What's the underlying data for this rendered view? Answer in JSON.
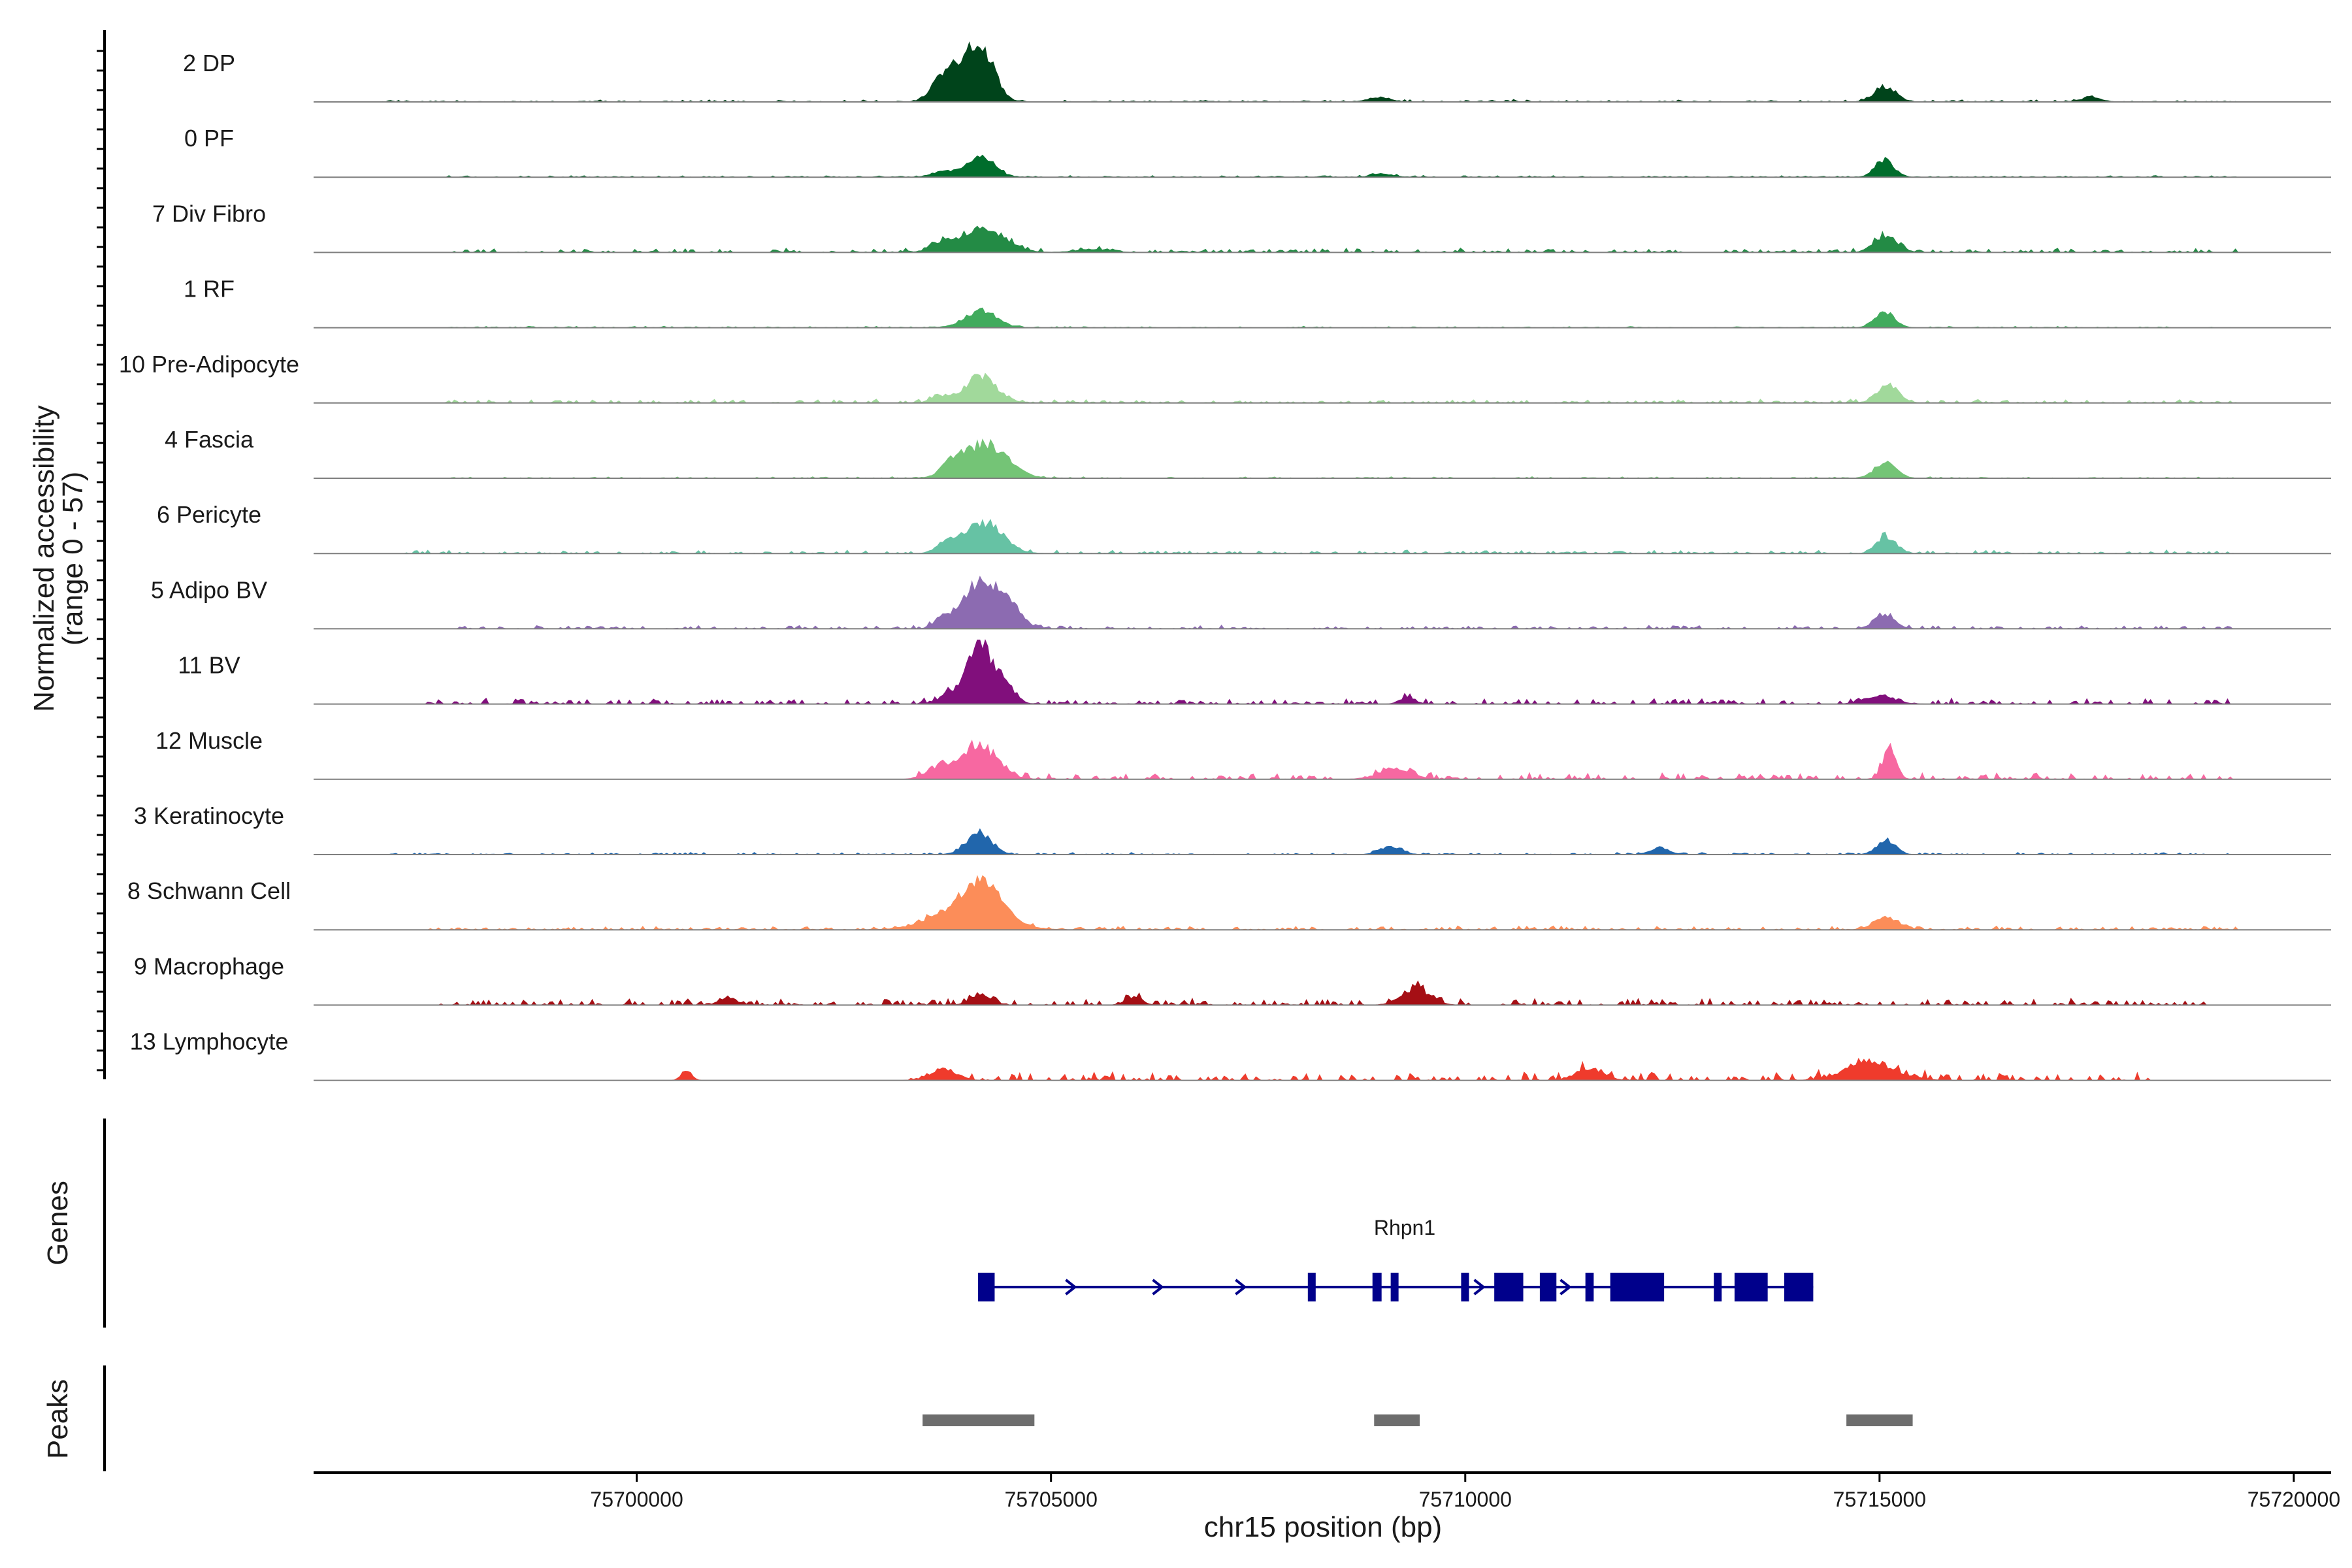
{
  "chart_data": {
    "type": "area",
    "title": "",
    "chromosome": "chr15",
    "xlabel": "chr15 position (bp)",
    "xlim": [
      75696100,
      75720450
    ],
    "x_ticks": [
      75700000,
      75705000,
      75710000,
      75715000,
      75720000
    ],
    "x_tick_labels": [
      "75700000",
      "75705000",
      "75710000",
      "75715000",
      "75720000"
    ],
    "ylabel_line1": "Normalized accessibility",
    "ylabel_line2": "(range 0 - 57)",
    "ylim": [
      0,
      57
    ],
    "panels": {
      "genes": "Genes",
      "peaks": "Peaks"
    },
    "series": [
      {
        "name": "2 DP",
        "color": "#00441B",
        "peaks": [
          [
            75703900,
            30,
            180
          ],
          [
            75704180,
            40,
            150
          ],
          [
            75703650,
            12,
            120
          ],
          [
            75708960,
            4,
            130
          ],
          [
            75715070,
            14,
            130
          ],
          [
            75717550,
            4,
            120
          ]
        ],
        "noise": [
          [
            75696900,
            75719300,
            1.4
          ]
        ]
      },
      {
        "name": "0 PF",
        "color": "#006D2C",
        "peaks": [
          [
            75704150,
            17,
            170
          ],
          [
            75703700,
            5,
            140
          ],
          [
            75709000,
            3,
            130
          ],
          [
            75715060,
            16,
            110
          ]
        ],
        "noise": [
          [
            75697700,
            75719300,
            1.0
          ]
        ]
      },
      {
        "name": "7 Div Fibro",
        "color": "#238B45",
        "peaks": [
          [
            75704200,
            22,
            250
          ],
          [
            75703700,
            8,
            150
          ],
          [
            75705500,
            3,
            200
          ],
          [
            75715080,
            15,
            140
          ]
        ],
        "noise": [
          [
            75697700,
            75719300,
            2.6
          ]
        ]
      },
      {
        "name": "1 RF",
        "color": "#41AB5D",
        "peaks": [
          [
            75704150,
            15,
            190
          ],
          [
            75715060,
            14,
            120
          ]
        ],
        "noise": [
          [
            75697700,
            75719300,
            0.9
          ]
        ]
      },
      {
        "name": "10 Pre-Adipocyte",
        "color": "#A1D99B",
        "peaks": [
          [
            75704150,
            24,
            190
          ],
          [
            75715100,
            16,
            130
          ],
          [
            75703650,
            6,
            100
          ]
        ],
        "noise": [
          [
            75697700,
            75719300,
            2.2
          ]
        ]
      },
      {
        "name": "4 Fascia",
        "color": "#74C476",
        "peaks": [
          [
            75704200,
            31,
            260
          ],
          [
            75703800,
            10,
            120
          ],
          [
            75715070,
            14,
            130
          ]
        ],
        "noise": [
          [
            75697700,
            75719300,
            0.9
          ]
        ]
      },
      {
        "name": "6 Pericyte",
        "color": "#66C2A4",
        "peaks": [
          [
            75704200,
            28,
            220
          ],
          [
            75703750,
            10,
            120
          ],
          [
            75715080,
            15,
            110
          ]
        ],
        "noise": [
          [
            75697200,
            75719300,
            2.0
          ]
        ]
      },
      {
        "name": "5 Adipo BV",
        "color": "#8C6BB1",
        "peaks": [
          [
            75704150,
            44,
            200
          ],
          [
            75704500,
            18,
            150
          ],
          [
            75703700,
            10,
            100
          ],
          [
            75715060,
            13,
            120
          ]
        ],
        "noise": [
          [
            75697700,
            75719300,
            2.2
          ]
        ]
      },
      {
        "name": "11 BV",
        "color": "#810F7C",
        "peaks": [
          [
            75704130,
            57,
            150
          ],
          [
            75704450,
            16,
            120
          ],
          [
            75703750,
            7,
            120
          ],
          [
            75709300,
            6,
            90
          ],
          [
            75715000,
            7,
            180
          ]
        ],
        "noise": [
          [
            75697400,
            75719300,
            3.6
          ]
        ]
      },
      {
        "name": "12 Muscle",
        "color": "#F768A1",
        "peaks": [
          [
            75704130,
            30,
            220
          ],
          [
            75703650,
            10,
            150
          ],
          [
            75709150,
            9,
            200
          ],
          [
            75715120,
            27,
            80
          ]
        ],
        "noise": [
          [
            75703300,
            75719300,
            4.2
          ]
        ]
      },
      {
        "name": "3 Keratinocyte",
        "color": "#2166AC",
        "peaks": [
          [
            75704130,
            20,
            150
          ],
          [
            75709100,
            7,
            130
          ],
          [
            75712350,
            6,
            110
          ],
          [
            75715080,
            13,
            110
          ]
        ],
        "noise": [
          [
            75697000,
            75719300,
            1.3
          ]
        ]
      },
      {
        "name": "8 Schwann Cell",
        "color": "#FC8D59",
        "peaks": [
          [
            75704000,
            24,
            380
          ],
          [
            75704200,
            22,
            200
          ],
          [
            75715080,
            11,
            150
          ]
        ],
        "noise": [
          [
            75697500,
            75719300,
            2.3
          ]
        ]
      },
      {
        "name": "9 Macrophage",
        "color": "#A50F15",
        "peaks": [
          [
            75704150,
            10,
            120
          ],
          [
            75709400,
            15,
            170
          ],
          [
            75701100,
            7,
            100
          ],
          [
            75706000,
            7,
            100
          ]
        ],
        "noise": [
          [
            75697600,
            75719000,
            4.0
          ]
        ]
      },
      {
        "name": "13 Lymphocyte",
        "color": "#EF3B2C",
        "peaks": [
          [
            75714900,
            15,
            300
          ],
          [
            75700600,
            9,
            60
          ],
          [
            75703700,
            10,
            160
          ],
          [
            75711500,
            11,
            160
          ]
        ],
        "noise": [
          [
            75703300,
            75718300,
            5.2
          ]
        ]
      }
    ],
    "gene": {
      "name": "Rhpn1",
      "color": "#00008B",
      "start": 75704120,
      "end": 75714200,
      "strand": "+",
      "exons": [
        [
          75704120,
          75704320
        ],
        [
          75708100,
          75708180
        ],
        [
          75708880,
          75708990
        ],
        [
          75709100,
          75709180
        ],
        [
          75709950,
          75710010
        ],
        [
          75710350,
          75710700
        ],
        [
          75710900,
          75711100
        ],
        [
          75711450,
          75711550
        ],
        [
          75711750,
          75712400
        ],
        [
          75713000,
          75713060
        ],
        [
          75713250,
          75713650
        ],
        [
          75713850,
          75714200
        ]
      ],
      "arrows": [
        75704200,
        75705250,
        75706300,
        75707300,
        75710180,
        75711220
      ]
    },
    "peaks_track": [
      [
        75703450,
        75704800
      ],
      [
        75708900,
        75709450
      ],
      [
        75714600,
        75715400
      ]
    ]
  }
}
